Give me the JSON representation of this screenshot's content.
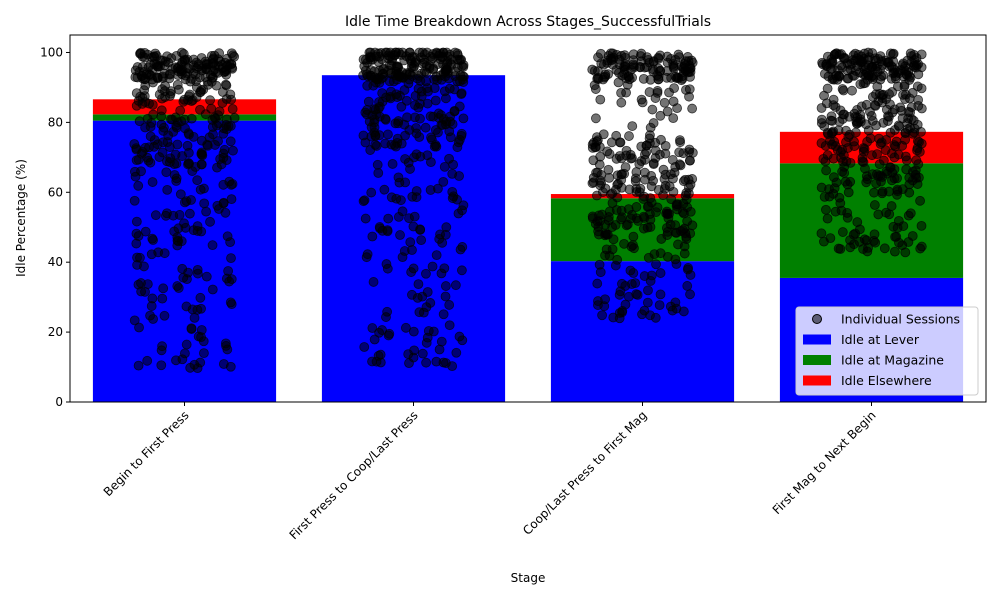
{
  "chart_data": {
    "type": "bar",
    "stacked": true,
    "title": "Idle Time Breakdown Across Stages_SuccessfulTrials",
    "xlabel": "Stage",
    "ylabel": "Idle Percentage (%)",
    "ylim": [
      0,
      105
    ],
    "yticks": [
      0,
      20,
      40,
      60,
      80,
      100
    ],
    "grid": false,
    "legend_position": "lower-right",
    "categories": [
      "Begin to First Press",
      "First Press to Coop/Last Press",
      "Coop/Last Press to First Mag",
      "First Mag to Next Begin"
    ],
    "series": [
      {
        "name": "Idle at Lever",
        "color": "#0000ff",
        "values": [
          80.5,
          93.5,
          40.3,
          35.5
        ]
      },
      {
        "name": "Idle at Magazine",
        "color": "#008000",
        "values": [
          1.8,
          0,
          18.0,
          32.8
        ]
      },
      {
        "name": "Idle Elsewhere",
        "color": "#ff0000",
        "values": [
          4.3,
          0,
          1.2,
          9.0
        ]
      }
    ],
    "scatter_series": {
      "name": "Individual Sessions",
      "color": "#000000",
      "opacity": 0.55,
      "distributions": [
        {
          "category": "Begin to First Press",
          "min": 9,
          "max": 100,
          "mean": 82
        },
        {
          "category": "First Press to Coop/Last Press",
          "min": 10,
          "max": 100,
          "mean": 88
        },
        {
          "category": "Coop/Last Press to First Mag",
          "min": 23.8,
          "max": 100,
          "mean": 60
        },
        {
          "category": "First Mag to Next Begin",
          "min": 42.5,
          "max": 100,
          "mean": 77
        }
      ]
    }
  }
}
